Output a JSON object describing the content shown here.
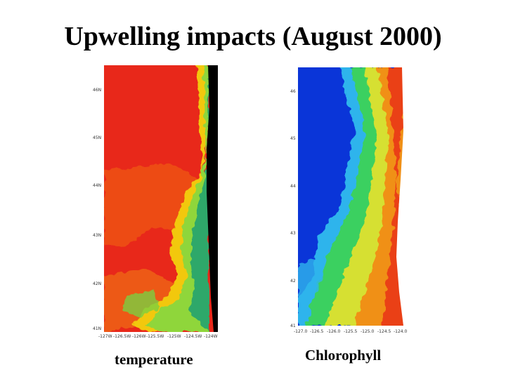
{
  "title": "Upwelling impacts (August 2000)",
  "panels": [
    {
      "caption": "temperature",
      "lat_labels": [
        "46N",
        "45N",
        "44N",
        "43N",
        "42N",
        "41N"
      ],
      "lon_labels": [
        "-127W",
        "-126.5W",
        "-126W",
        "-125.5W",
        "-125W",
        "-124.5W",
        "-124W"
      ],
      "colormap": "jet (blue→cyan→green→yellow→red)",
      "land_color": "#000000"
    },
    {
      "caption": "Chlorophyll",
      "lat_labels": [
        "46",
        "45",
        "44",
        "43",
        "42",
        "41"
      ],
      "lon_labels": [
        "-127.0",
        "-126.5",
        "-126.0",
        "-125.5",
        "-125.0",
        "-124.5",
        "-124.0"
      ],
      "colormap": "jet (blue→cyan→green→yellow→red)",
      "land_color": "#ffffff"
    }
  ]
}
